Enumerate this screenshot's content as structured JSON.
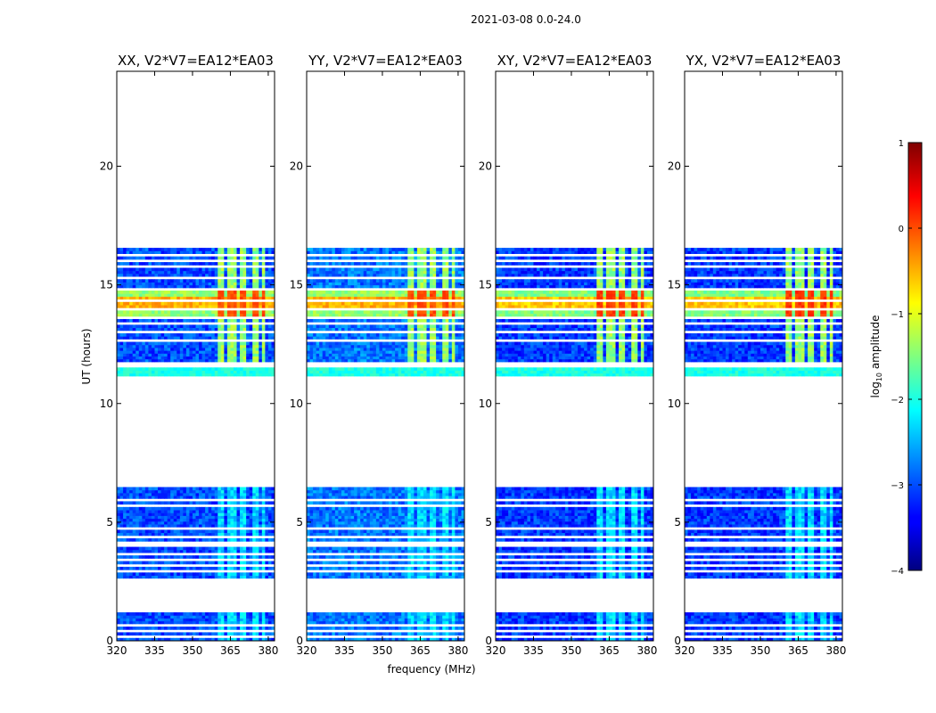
{
  "chart_data": {
    "type": "heatmap",
    "suptitle": "2021-03-08 0.0-24.0",
    "xlabel": "frequency (MHz)",
    "ylabel": "UT (hours)",
    "xlim": [
      320,
      382.5
    ],
    "ylim": [
      0,
      24
    ],
    "x_ticks": [
      320,
      335,
      350,
      365,
      380
    ],
    "y_ticks": [
      0,
      5,
      10,
      15,
      20
    ],
    "colorbar": {
      "label": "log10 amplitude",
      "label_main": "log",
      "label_sub": "10",
      "label_rest": " amplitude",
      "range": [
        -4,
        1
      ],
      "ticks": [
        1,
        0,
        -1,
        -2,
        -3,
        -4
      ],
      "tick_labels": [
        "1",
        "0",
        "−1",
        "−2",
        "−3",
        "−4"
      ],
      "colormap": "jet"
    },
    "panels": [
      {
        "title": "XX, V2*V7=EA12*EA03",
        "base_level": -3.0,
        "strong_level": 0.0,
        "flare_level": -0.5
      },
      {
        "title": "YY, V2*V7=EA12*EA03",
        "base_level": -2.8,
        "strong_level": 0.0,
        "flare_level": -0.5
      },
      {
        "title": "XY, V2*V7=EA12*EA03",
        "base_level": -3.1,
        "strong_level": 0.1,
        "flare_level": -0.6
      },
      {
        "title": "YX, V2*V7=EA12*EA03",
        "base_level": -3.1,
        "strong_level": 0.1,
        "flare_level": -0.6
      }
    ],
    "data_blocks_ut": [
      [
        0.0,
        1.25
      ],
      [
        2.65,
        4.65
      ],
      [
        4.75,
        6.5
      ],
      [
        11.1,
        16.55
      ]
    ],
    "flagged_gaps_ut": [
      0.22,
      0.45,
      0.62,
      2.95,
      3.2,
      3.45,
      3.7,
      4.0,
      4.2,
      4.4,
      5.65,
      6.0,
      11.55,
      11.72,
      12.6,
      13.0,
      13.35,
      13.65,
      13.95,
      14.3,
      14.85,
      15.3,
      15.75,
      16.0,
      16.25
    ],
    "rfi_bands_mhz": [
      [
        360,
        363
      ],
      [
        364,
        367
      ],
      [
        368.5,
        371
      ],
      [
        373.5,
        376
      ],
      [
        377,
        379
      ]
    ],
    "strong_burst_ut": [
      13.7,
      14.7
    ],
    "burst_level": -1.4
  }
}
